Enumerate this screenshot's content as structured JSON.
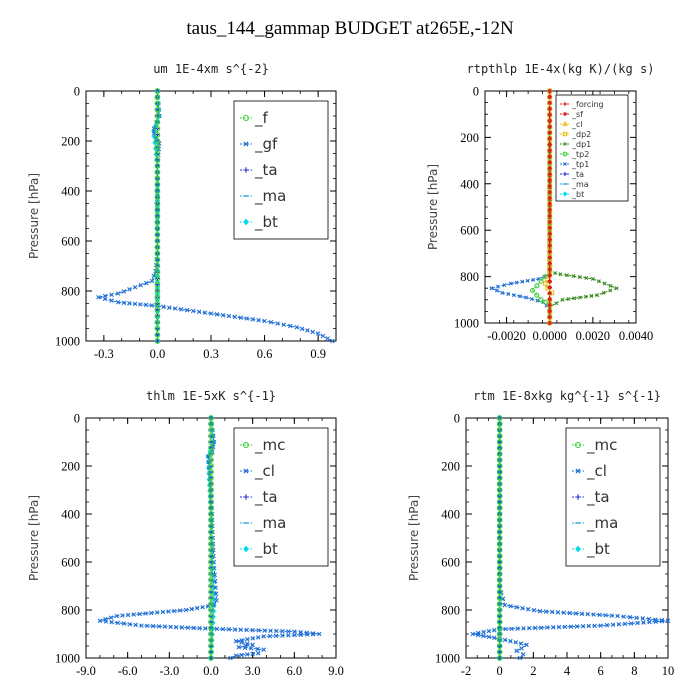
{
  "page": {
    "title": "taus_144_gammap  BUDGET at265E,-12N"
  },
  "chart_data": [
    {
      "type": "line",
      "title": "um  1E-4xm s^{-2}",
      "ylabel": "Pressure [hPa]",
      "xlim": [
        -0.4,
        1.0
      ],
      "ylim": [
        1000,
        0
      ],
      "y_inverted": true,
      "xticks": [
        "-0.3",
        "0.0",
        "0.3",
        "0.6",
        "0.9"
      ],
      "xtick_values": [
        -0.3,
        0.0,
        0.3,
        0.6,
        0.9
      ],
      "yticks": [
        "0",
        "200",
        "400",
        "600",
        "800",
        "1000"
      ],
      "ytick_values": [
        0,
        200,
        400,
        600,
        800,
        1000
      ],
      "legend_style": "big",
      "legend_position": "top-right",
      "series": [
        {
          "name": "_f",
          "color": "#3cd13c",
          "marker": "circle",
          "x": [
            0,
            0,
            0,
            0,
            0,
            0
          ],
          "y": [
            0,
            200,
            400,
            600,
            800,
            1000
          ]
        },
        {
          "name": "_gf",
          "color": "#1f6fd6",
          "marker": "x",
          "x": [
            0.0,
            0.01,
            -0.02,
            -0.02,
            0.01,
            0.0,
            0.0,
            0.0,
            -0.01,
            -0.03,
            -0.22,
            -0.33,
            -0.22,
            0.0,
            0.2,
            0.4,
            0.6,
            0.78,
            0.9,
            0.98
          ],
          "y": [
            0,
            100,
            150,
            170,
            210,
            300,
            500,
            650,
            720,
            760,
            810,
            825,
            845,
            860,
            880,
            900,
            920,
            945,
            970,
            1000
          ]
        },
        {
          "name": "_ta",
          "color": "#2a2ad6",
          "marker": "plus",
          "x": [
            0,
            0,
            0,
            0,
            0
          ],
          "y": [
            0,
            250,
            500,
            750,
            1000
          ]
        },
        {
          "name": "_ma",
          "color": "#2aa6d6",
          "marker": "dash",
          "x": [
            0,
            0,
            0,
            0,
            0
          ],
          "y": [
            0,
            250,
            500,
            750,
            1000
          ]
        },
        {
          "name": "_bt",
          "color": "#00d8e8",
          "marker": "diamond",
          "x": [
            0.0,
            0.01,
            -0.02,
            0.0,
            0.0,
            0.0
          ],
          "y": [
            0,
            100,
            160,
            300,
            600,
            1000
          ]
        }
      ]
    },
    {
      "type": "line",
      "title": "rtpthlp  1E-4x(kg K)/(kg s)",
      "ylabel": "Pressure [hPa]",
      "xlim": [
        -0.003,
        0.004
      ],
      "ylim": [
        1000,
        0
      ],
      "y_inverted": true,
      "xticks": [
        "-0.0020",
        "0.0000",
        "0.0020",
        "0.0040"
      ],
      "xtick_values": [
        -0.002,
        0.0,
        0.002,
        0.004
      ],
      "yticks": [
        "0",
        "200",
        "400",
        "600",
        "800",
        "1000"
      ],
      "ytick_values": [
        0,
        200,
        400,
        600,
        800,
        1000
      ],
      "legend_style": "small",
      "legend_position": "top-right",
      "series": [
        {
          "name": "_forcing",
          "color": "#d62020",
          "marker": "plus",
          "x": [
            0,
            0
          ],
          "y": [
            0,
            1000
          ]
        },
        {
          "name": "_sf",
          "color": "#d62020",
          "marker": "star",
          "x": [
            0,
            0
          ],
          "y": [
            0,
            1000
          ]
        },
        {
          "name": "_cl",
          "color": "#e8c020",
          "marker": "triangle",
          "x": [
            0,
            0
          ],
          "y": [
            0,
            1000
          ]
        },
        {
          "name": "_dp2",
          "color": "#e8c020",
          "marker": "square",
          "x": [
            0.0,
            0.0,
            -0.0002,
            -0.0001,
            0.0001,
            0.0,
            0.0
          ],
          "y": [
            0,
            790,
            830,
            850,
            870,
            900,
            1000
          ]
        },
        {
          "name": "_dp1",
          "color": "#3a8a20",
          "marker": "x",
          "x": [
            0.0,
            0.0,
            0.0005,
            0.002,
            0.0031,
            0.0022,
            0.0006,
            0.0,
            0.0
          ],
          "y": [
            0,
            780,
            790,
            810,
            850,
            880,
            900,
            930,
            1000
          ]
        },
        {
          "name": "_tp2",
          "color": "#3cd13c",
          "marker": "circle",
          "x": [
            0.0,
            0.0,
            -0.0004,
            -0.0008,
            -0.0004,
            0.0,
            0.0
          ],
          "y": [
            0,
            780,
            820,
            860,
            900,
            920,
            1000
          ]
        },
        {
          "name": "_tp1",
          "color": "#1f6fd6",
          "marker": "x",
          "x": [
            0.0,
            0.0,
            -0.0005,
            -0.0018,
            -0.0027,
            -0.0022,
            -0.0011,
            -0.0003,
            0.0,
            0.0
          ],
          "y": [
            0,
            790,
            810,
            830,
            850,
            870,
            890,
            910,
            940,
            1000
          ]
        },
        {
          "name": "_ta",
          "color": "#2a2ad6",
          "marker": "plus",
          "x": [
            0,
            0
          ],
          "y": [
            0,
            1000
          ]
        },
        {
          "name": "_ma",
          "color": "#2aa6d6",
          "marker": "dash",
          "x": [
            0,
            0
          ],
          "y": [
            0,
            1000
          ]
        },
        {
          "name": "_bt",
          "color": "#00d8e8",
          "marker": "diamond",
          "x": [
            0,
            0
          ],
          "y": [
            0,
            1000
          ]
        }
      ]
    },
    {
      "type": "line",
      "title": "thlm  1E-5xK s^{-1}",
      "ylabel": "Pressure [hPa]",
      "xlim": [
        -9.0,
        9.0
      ],
      "ylim": [
        1000,
        0
      ],
      "y_inverted": true,
      "xticks": [
        "-9.0",
        "-6.0",
        "-3.0",
        "0.0",
        "3.0",
        "6.0",
        "9.0"
      ],
      "xtick_values": [
        -9,
        -6,
        -3,
        0,
        3,
        6,
        9
      ],
      "yticks": [
        "0",
        "200",
        "400",
        "600",
        "800",
        "1000"
      ],
      "ytick_values": [
        0,
        200,
        400,
        600,
        800,
        1000
      ],
      "legend_style": "big",
      "legend_position": "top-right",
      "series": [
        {
          "name": "_mc",
          "color": "#3cd13c",
          "marker": "circle",
          "x": [
            0,
            0,
            0,
            0,
            0,
            0
          ],
          "y": [
            0,
            200,
            400,
            600,
            800,
            1000
          ]
        },
        {
          "name": "_cl",
          "color": "#1f6fd6",
          "marker": "x",
          "x": [
            0.0,
            0.2,
            0.1,
            -0.2,
            0.0,
            0.2,
            0.4,
            0.2,
            -1.8,
            -6.8,
            -8.0,
            -5.0,
            0.0,
            6.0,
            7.8,
            3.8,
            1.8,
            3.0,
            2.0,
            3.8,
            3.4,
            1.8,
            1.4
          ],
          "y": [
            0,
            100,
            140,
            160,
            300,
            600,
            760,
            780,
            800,
            825,
            845,
            865,
            878,
            890,
            900,
            910,
            930,
            945,
            955,
            965,
            980,
            990,
            1000
          ]
        },
        {
          "name": "_ta",
          "color": "#2a2ad6",
          "marker": "plus",
          "x": [
            0,
            0,
            0,
            0,
            0
          ],
          "y": [
            0,
            250,
            500,
            750,
            1000
          ]
        },
        {
          "name": "_ma",
          "color": "#2aa6d6",
          "marker": "dash",
          "x": [
            0,
            0,
            0,
            0,
            0
          ],
          "y": [
            0,
            250,
            500,
            750,
            1000
          ]
        },
        {
          "name": "_bt",
          "color": "#00d8e8",
          "marker": "diamond",
          "x": [
            0.0,
            0.2,
            -0.2,
            0.0,
            0.2,
            0.0
          ],
          "y": [
            0,
            100,
            160,
            400,
            780,
            1000
          ]
        }
      ]
    },
    {
      "type": "line",
      "title": "rtm  1E-8xkg kg^{-1} s^{-1}",
      "ylabel": "Pressure [hPa]",
      "xlim": [
        -2,
        10
      ],
      "ylim": [
        1000,
        0
      ],
      "y_inverted": true,
      "xticks": [
        "-2",
        "0",
        "2",
        "4",
        "6",
        "8",
        "10"
      ],
      "xtick_values": [
        -2,
        0,
        2,
        4,
        6,
        8,
        10
      ],
      "yticks": [
        "0",
        "200",
        "400",
        "600",
        "800",
        "1000"
      ],
      "ytick_values": [
        0,
        200,
        400,
        600,
        800,
        1000
      ],
      "legend_style": "big",
      "legend_position": "top-right",
      "series": [
        {
          "name": "_mc",
          "color": "#3cd13c",
          "marker": "circle",
          "x": [
            0,
            0,
            0,
            0,
            0,
            0
          ],
          "y": [
            0,
            200,
            400,
            600,
            800,
            1000
          ]
        },
        {
          "name": "_cl",
          "color": "#1f6fd6",
          "marker": "x",
          "x": [
            0.0,
            0.0,
            0.0,
            0.3,
            2.4,
            7.0,
            10.0,
            6.0,
            0.0,
            -1.6,
            0.0,
            1.6,
            1.3,
            1.0,
            1.4,
            1.2
          ],
          "y": [
            0,
            300,
            700,
            780,
            805,
            825,
            845,
            865,
            880,
            900,
            920,
            945,
            960,
            970,
            985,
            1000
          ]
        },
        {
          "name": "_ta",
          "color": "#2a2ad6",
          "marker": "plus",
          "x": [
            0,
            0,
            0,
            0,
            0
          ],
          "y": [
            0,
            250,
            500,
            750,
            1000
          ]
        },
        {
          "name": "_ma",
          "color": "#2aa6d6",
          "marker": "dash",
          "x": [
            0,
            0,
            0,
            0,
            0
          ],
          "y": [
            0,
            250,
            500,
            750,
            1000
          ]
        },
        {
          "name": "_bt",
          "color": "#00d8e8",
          "marker": "diamond",
          "x": [
            0,
            0,
            0,
            0,
            0
          ],
          "y": [
            0,
            250,
            500,
            750,
            1000
          ]
        }
      ]
    }
  ]
}
